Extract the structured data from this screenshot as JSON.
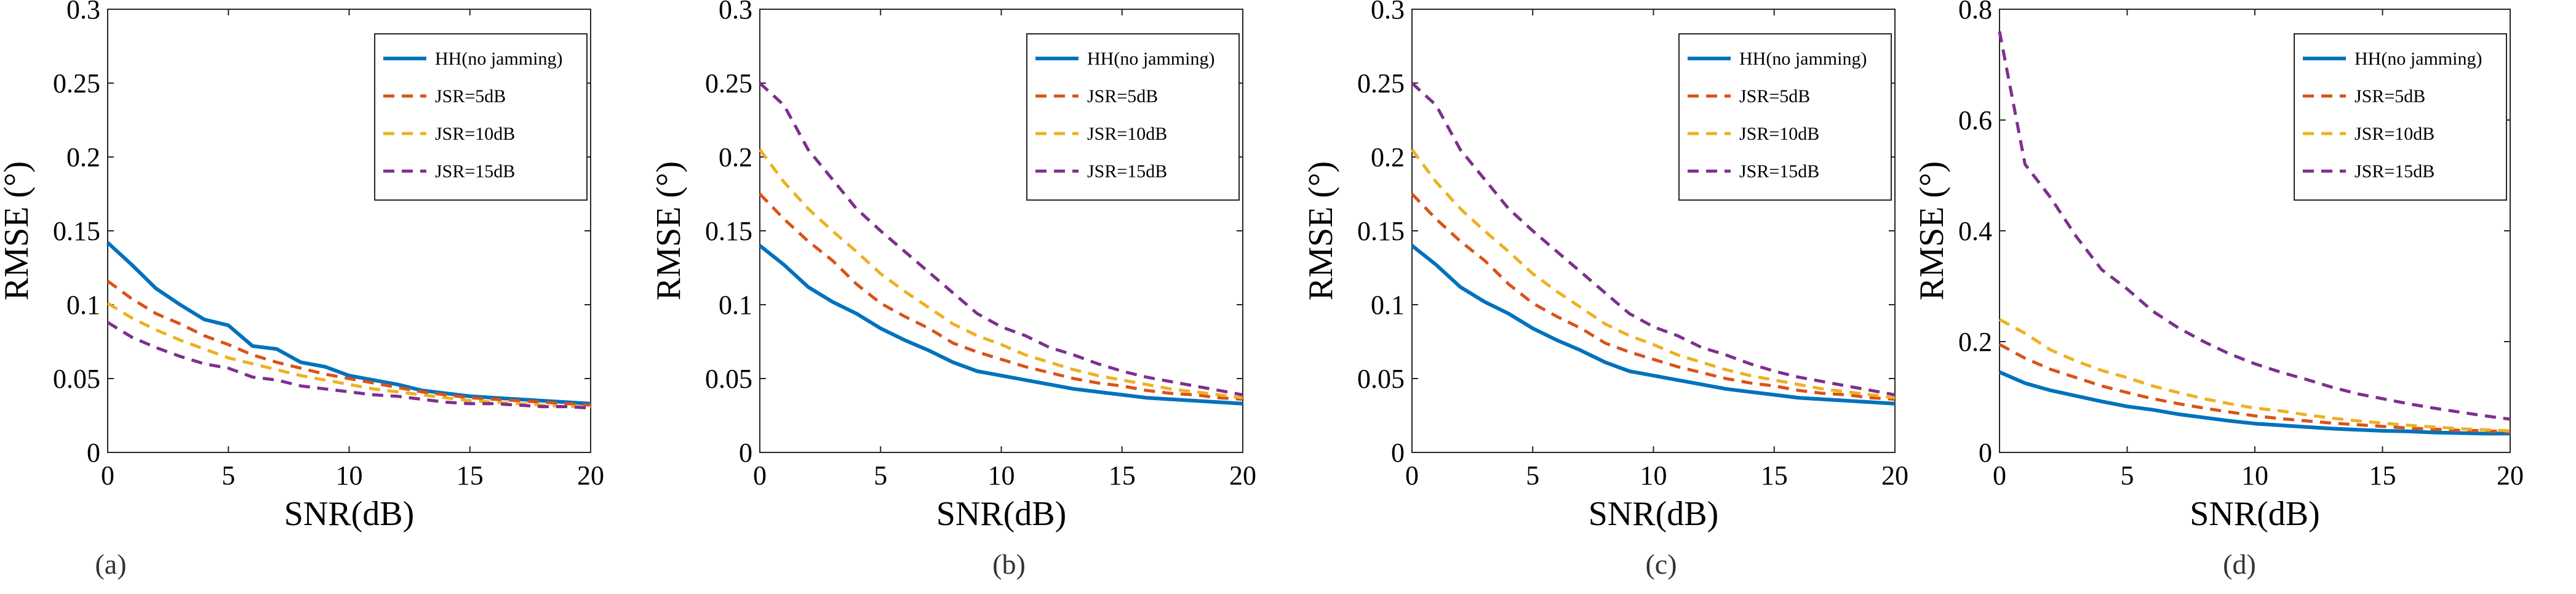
{
  "chart_data": [
    {
      "type": "line",
      "caption": "(a)",
      "xlabel": "SNR(dB)",
      "ylabel": "RMSE (°)",
      "xlim": [
        0,
        20
      ],
      "ylim": [
        0,
        0.3
      ],
      "xticks": [
        "0",
        "5",
        "10",
        "15",
        "20"
      ],
      "yticks": [
        "0",
        "0.05",
        "0.1",
        "0.15",
        "0.2",
        "0.25",
        "0.3"
      ],
      "legend_position": "top-right",
      "x": [
        0,
        1,
        2,
        3,
        4,
        5,
        6,
        7,
        8,
        9,
        10,
        11,
        12,
        13,
        14,
        15,
        16,
        17,
        18,
        19,
        20
      ],
      "series": [
        {
          "name": "HH(no jamming)",
          "color": "#0072BD",
          "dash": "solid",
          "values": [
            0.142,
            0.127,
            0.111,
            0.1,
            0.09,
            0.086,
            0.072,
            0.07,
            0.061,
            0.058,
            0.052,
            0.049,
            0.046,
            0.042,
            0.04,
            0.038,
            0.037,
            0.036,
            0.035,
            0.034,
            0.033
          ]
        },
        {
          "name": "JSR=5dB",
          "color": "#D95319",
          "dash": "dashed",
          "values": [
            0.116,
            0.104,
            0.094,
            0.087,
            0.079,
            0.073,
            0.066,
            0.061,
            0.057,
            0.053,
            0.05,
            0.047,
            0.044,
            0.041,
            0.039,
            0.037,
            0.036,
            0.035,
            0.034,
            0.033,
            0.032
          ]
        },
        {
          "name": "JSR=10dB",
          "color": "#EDB120",
          "dash": "dashed",
          "values": [
            0.101,
            0.091,
            0.083,
            0.076,
            0.07,
            0.064,
            0.06,
            0.056,
            0.052,
            0.049,
            0.046,
            0.043,
            0.041,
            0.039,
            0.037,
            0.035,
            0.034,
            0.033,
            0.032,
            0.031,
            0.031
          ]
        },
        {
          "name": "JSR=15dB",
          "color": "#7E2F8E",
          "dash": "dashed",
          "values": [
            0.088,
            0.078,
            0.071,
            0.065,
            0.06,
            0.057,
            0.051,
            0.049,
            0.045,
            0.043,
            0.041,
            0.039,
            0.038,
            0.036,
            0.034,
            0.033,
            0.033,
            0.032,
            0.031,
            0.031,
            0.03
          ]
        }
      ]
    },
    {
      "type": "line",
      "caption": "(b)",
      "xlabel": "SNR(dB)",
      "ylabel": "RMSE (°)",
      "xlim": [
        0,
        20
      ],
      "ylim": [
        0,
        0.3
      ],
      "xticks": [
        "0",
        "5",
        "10",
        "15",
        "20"
      ],
      "yticks": [
        "0",
        "0.05",
        "0.1",
        "0.15",
        "0.2",
        "0.25",
        "0.3"
      ],
      "legend_position": "top-right",
      "x": [
        0,
        1,
        2,
        3,
        4,
        5,
        6,
        7,
        8,
        9,
        10,
        11,
        12,
        13,
        14,
        15,
        16,
        17,
        18,
        19,
        20
      ],
      "series": [
        {
          "name": "HH(no jamming)",
          "color": "#0072BD",
          "dash": "solid",
          "values": [
            0.14,
            0.127,
            0.112,
            0.102,
            0.094,
            0.084,
            0.076,
            0.069,
            0.061,
            0.055,
            0.052,
            0.049,
            0.046,
            0.043,
            0.041,
            0.039,
            0.037,
            0.036,
            0.035,
            0.034,
            0.033
          ]
        },
        {
          "name": "JSR=5dB",
          "color": "#D95319",
          "dash": "dashed",
          "values": [
            0.175,
            0.158,
            0.143,
            0.13,
            0.114,
            0.101,
            0.092,
            0.084,
            0.074,
            0.068,
            0.063,
            0.058,
            0.054,
            0.05,
            0.047,
            0.045,
            0.042,
            0.04,
            0.039,
            0.037,
            0.036
          ]
        },
        {
          "name": "JSR=10dB",
          "color": "#EDB120",
          "dash": "dashed",
          "values": [
            0.205,
            0.183,
            0.165,
            0.15,
            0.136,
            0.121,
            0.109,
            0.098,
            0.087,
            0.079,
            0.073,
            0.066,
            0.061,
            0.056,
            0.052,
            0.049,
            0.046,
            0.043,
            0.041,
            0.039,
            0.037
          ]
        },
        {
          "name": "JSR=15dB",
          "color": "#7E2F8E",
          "dash": "dashed",
          "values": [
            0.25,
            0.235,
            0.205,
            0.185,
            0.165,
            0.15,
            0.136,
            0.122,
            0.108,
            0.094,
            0.085,
            0.079,
            0.071,
            0.066,
            0.06,
            0.055,
            0.051,
            0.048,
            0.045,
            0.042,
            0.039
          ]
        }
      ]
    },
    {
      "type": "line",
      "caption": "(c)",
      "xlabel": "SNR(dB)",
      "ylabel": "RMSE (°)",
      "xlim": [
        0,
        20
      ],
      "ylim": [
        0,
        0.3
      ],
      "xticks": [
        "0",
        "5",
        "10",
        "15",
        "20"
      ],
      "yticks": [
        "0",
        "0.05",
        "0.1",
        "0.15",
        "0.2",
        "0.25",
        "0.3"
      ],
      "legend_position": "top-right",
      "x": [
        0,
        1,
        2,
        3,
        4,
        5,
        6,
        7,
        8,
        9,
        10,
        11,
        12,
        13,
        14,
        15,
        16,
        17,
        18,
        19,
        20
      ],
      "series": [
        {
          "name": "HH(no jamming)",
          "color": "#0072BD",
          "dash": "solid",
          "values": [
            0.14,
            0.127,
            0.112,
            0.102,
            0.094,
            0.084,
            0.076,
            0.069,
            0.061,
            0.055,
            0.052,
            0.049,
            0.046,
            0.043,
            0.041,
            0.039,
            0.037,
            0.036,
            0.035,
            0.034,
            0.033
          ]
        },
        {
          "name": "JSR=5dB",
          "color": "#D95319",
          "dash": "dashed",
          "values": [
            0.175,
            0.158,
            0.143,
            0.13,
            0.114,
            0.101,
            0.092,
            0.084,
            0.074,
            0.068,
            0.063,
            0.058,
            0.054,
            0.05,
            0.047,
            0.045,
            0.042,
            0.04,
            0.039,
            0.037,
            0.036
          ]
        },
        {
          "name": "JSR=10dB",
          "color": "#EDB120",
          "dash": "dashed",
          "values": [
            0.205,
            0.183,
            0.165,
            0.15,
            0.136,
            0.121,
            0.109,
            0.098,
            0.087,
            0.079,
            0.073,
            0.066,
            0.061,
            0.056,
            0.052,
            0.049,
            0.046,
            0.043,
            0.041,
            0.039,
            0.037
          ]
        },
        {
          "name": "JSR=15dB",
          "color": "#7E2F8E",
          "dash": "dashed",
          "values": [
            0.25,
            0.235,
            0.205,
            0.185,
            0.165,
            0.15,
            0.136,
            0.122,
            0.108,
            0.094,
            0.085,
            0.079,
            0.071,
            0.066,
            0.06,
            0.055,
            0.051,
            0.048,
            0.045,
            0.042,
            0.039
          ]
        }
      ]
    },
    {
      "type": "line",
      "caption": "(d)",
      "xlabel": "SNR(dB)",
      "ylabel": "RMSE (°)",
      "xlim": [
        0,
        20
      ],
      "ylim": [
        0,
        0.8
      ],
      "xticks": [
        "0",
        "5",
        "10",
        "15",
        "20"
      ],
      "yticks": [
        "0",
        "0.2",
        "0.4",
        "0.6",
        "0.8"
      ],
      "legend_position": "top-right",
      "x": [
        0,
        1,
        2,
        3,
        4,
        5,
        6,
        7,
        8,
        9,
        10,
        11,
        12,
        13,
        14,
        15,
        16,
        17,
        18,
        19,
        20
      ],
      "series": [
        {
          "name": "HH(no jamming)",
          "color": "#0072BD",
          "dash": "solid",
          "values": [
            0.145,
            0.125,
            0.112,
            0.102,
            0.092,
            0.083,
            0.077,
            0.069,
            0.063,
            0.057,
            0.052,
            0.049,
            0.046,
            0.043,
            0.041,
            0.039,
            0.038,
            0.036,
            0.035,
            0.034,
            0.034
          ]
        },
        {
          "name": "JSR=5dB",
          "color": "#D95319",
          "dash": "dashed",
          "values": [
            0.195,
            0.17,
            0.15,
            0.135,
            0.12,
            0.108,
            0.097,
            0.088,
            0.08,
            0.073,
            0.066,
            0.061,
            0.057,
            0.053,
            0.05,
            0.047,
            0.044,
            0.042,
            0.04,
            0.039,
            0.037
          ]
        },
        {
          "name": "JSR=10dB",
          "color": "#EDB120",
          "dash": "dashed",
          "values": [
            0.24,
            0.215,
            0.185,
            0.165,
            0.148,
            0.135,
            0.12,
            0.108,
            0.097,
            0.088,
            0.08,
            0.075,
            0.068,
            0.062,
            0.057,
            0.053,
            0.049,
            0.046,
            0.043,
            0.041,
            0.039
          ]
        },
        {
          "name": "JSR=15dB",
          "color": "#7E2F8E",
          "dash": "dashed",
          "values": [
            0.76,
            0.52,
            0.46,
            0.39,
            0.33,
            0.295,
            0.255,
            0.225,
            0.2,
            0.178,
            0.16,
            0.145,
            0.132,
            0.118,
            0.106,
            0.097,
            0.088,
            0.08,
            0.073,
            0.066,
            0.06
          ]
        }
      ]
    }
  ]
}
